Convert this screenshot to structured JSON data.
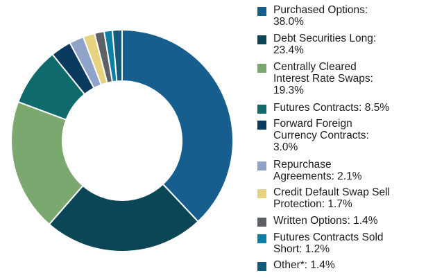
{
  "chart_data": {
    "type": "pie",
    "donut": true,
    "slices": [
      {
        "label": "Purchased Options: 38.0%",
        "value": 38.0,
        "color": "#155e8e"
      },
      {
        "label": "Debt Securities Long: 23.4%",
        "value": 23.4,
        "color": "#0b4657"
      },
      {
        "label": "Centrally Cleared Interest Rate Swaps: 19.3%",
        "value": 19.3,
        "color": "#7aa86e"
      },
      {
        "label": "Futures Contracts: 8.5%",
        "value": 8.5,
        "color": "#0e6a6b"
      },
      {
        "label": "Forward Foreign Currency Contracts: 3.0%",
        "value": 3.0,
        "color": "#0a3b5e"
      },
      {
        "label": "Repurchase Agreements: 2.1%",
        "value": 2.1,
        "color": "#8ea3c7"
      },
      {
        "label": "Credit Default Swap Sell Protection: 1.7%",
        "value": 1.7,
        "color": "#e7d27f"
      },
      {
        "label": "Written Options: 1.4%",
        "value": 1.4,
        "color": "#5d6165"
      },
      {
        "label": "Futures Contracts Sold Short: 1.2%",
        "value": 1.2,
        "color": "#0d7ea6"
      },
      {
        "label": "Other*: 1.4%",
        "value": 1.4,
        "color": "#145a7a"
      }
    ],
    "legend_position": "right"
  },
  "legend": {
    "items": [
      {
        "text": "Purchased Options:\n38.0%",
        "color": "#155e8e"
      },
      {
        "text": "Debt Securities Long:\n23.4%",
        "color": "#0b4657"
      },
      {
        "text": "Centrally Cleared\nInterest Rate Swaps:\n19.3%",
        "color": "#7aa86e"
      },
      {
        "text": "Futures Contracts: 8.5%",
        "color": "#0e6a6b"
      },
      {
        "text": "Forward Foreign\nCurrency Contracts:\n3.0%",
        "color": "#0a3b5e"
      },
      {
        "text": "Repurchase\nAgreements: 2.1%",
        "color": "#8ea3c7"
      },
      {
        "text": "Credit Default Swap Sell\nProtection: 1.7%",
        "color": "#e7d27f"
      },
      {
        "text": "Written Options: 1.4%",
        "color": "#5d6165"
      },
      {
        "text": "Futures Contracts Sold\nShort: 1.2%",
        "color": "#0d7ea6"
      },
      {
        "text": "Other*: 1.4%",
        "color": "#145a7a"
      }
    ]
  }
}
